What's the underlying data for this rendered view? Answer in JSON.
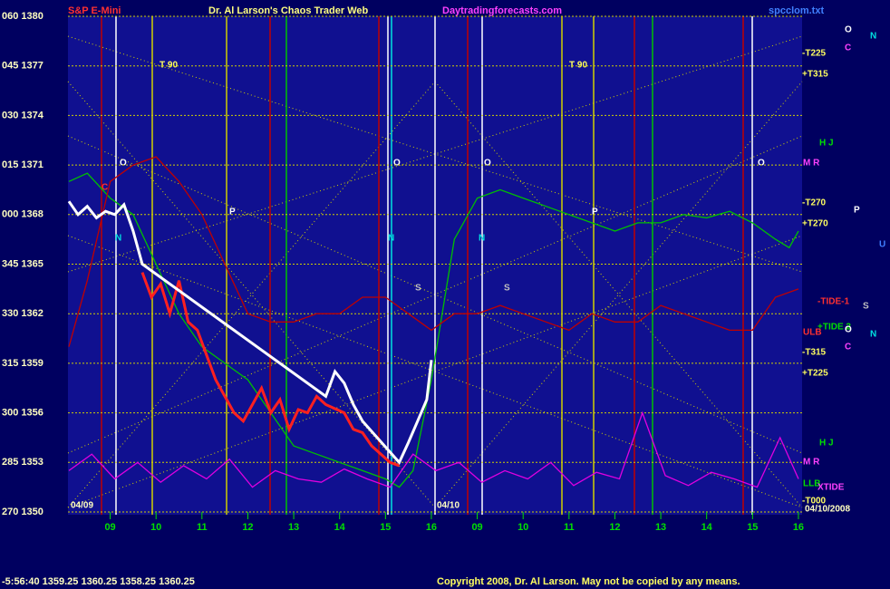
{
  "chart_data": {
    "type": "line",
    "title": "Dr. Al Larson's Chaos Trader Web",
    "instrument": "S&P E-Mini",
    "site": "Daytradingforecasts.com",
    "file": "spcclom.txt",
    "status": "-5:56:40  1359.25 1360.25 1358.25 1360.25",
    "copyright": "Copyright 2008, Dr. Al Larson. May not be copied by any means.",
    "xlim": [
      8.08,
      24.08
    ],
    "xticks": [
      {
        "value": 9,
        "label": "09"
      },
      10,
      11,
      12,
      13,
      14,
      15,
      16,
      {
        "value": 17,
        "label": "09"
      },
      {
        "value": 18,
        "label": "10"
      },
      {
        "value": 19,
        "label": "11"
      },
      {
        "value": 20,
        "label": "12"
      },
      {
        "value": 21,
        "label": "13"
      },
      {
        "value": 22,
        "label": "14"
      },
      {
        "value": 23,
        "label": "15"
      },
      {
        "value": 24,
        "label": "16"
      }
    ],
    "ylim": [
      1350,
      1380
    ],
    "yticks": [
      {
        "value": 1380,
        "label": "060 1380"
      },
      {
        "value": 1377,
        "label": "045 1377"
      },
      {
        "value": 1374,
        "label": "030 1374"
      },
      {
        "value": 1371,
        "label": "015 1371"
      },
      {
        "value": 1368,
        "label": "000 1368"
      },
      {
        "value": 1365,
        "label": "345 1365"
      },
      {
        "value": 1362,
        "label": "330 1362"
      },
      {
        "value": 1359,
        "label": "315 1359"
      },
      {
        "value": 1356,
        "label": "300 1356"
      },
      {
        "value": 1353,
        "label": "285 1353"
      },
      {
        "value": 1350,
        "label": "270 1350"
      }
    ],
    "grid": true,
    "annotations": [
      "T 90",
      "T 90",
      "O",
      "O",
      "O",
      "O",
      "C",
      "N",
      "N",
      "N",
      "P",
      "P",
      "S",
      "S",
      "04/09",
      "04/10",
      "04/10/2008",
      "-T225",
      "+T315",
      "H J",
      "M R",
      "-T270",
      "+T270",
      "-TIDE-1",
      "+TIDE 2",
      "ULB",
      "-T315",
      "+T225",
      "H J",
      "M R",
      "LLB",
      "XTIDE",
      "-T000",
      "O",
      "C",
      "N",
      "P",
      "U",
      "S",
      "O",
      "N",
      "C"
    ],
    "series": [
      {
        "color": "#00c000",
        "x": [
          8.1,
          8.5,
          9,
          9.5,
          10,
          10.5,
          11,
          11.5,
          12,
          12.5,
          13,
          13.5,
          14,
          14.5,
          15,
          15.3,
          15.6,
          16,
          16.5,
          17,
          17.5,
          18,
          18.5,
          19,
          19.5,
          20,
          20.5,
          21,
          21.5,
          22,
          22.5,
          23,
          23.5,
          23.8,
          24
        ],
        "values": [
          1370,
          1370.5,
          1369,
          1368,
          1365,
          1362,
          1360,
          1359,
          1358,
          1356,
          1354,
          1353.5,
          1353,
          1352.5,
          1352,
          1351.5,
          1352.5,
          1358,
          1366.5,
          1369,
          1369.5,
          1369,
          1368.5,
          1368,
          1367.5,
          1367,
          1367.5,
          1367.5,
          1368,
          1367.8,
          1368.2,
          1367.5,
          1366.5,
          1366,
          1367
        ]
      },
      {
        "color": "#c00000",
        "x": [
          8.1,
          8.5,
          9,
          9.5,
          10,
          10.5,
          11,
          11.5,
          12,
          12.5,
          13,
          13.5,
          14,
          14.5,
          15,
          15.5,
          16,
          16.5,
          17,
          17.5,
          18,
          18.5,
          19,
          19.5,
          20,
          20.5,
          21,
          21.5,
          22,
          22.5,
          23,
          23.5,
          24
        ],
        "values": [
          1360,
          1364,
          1370,
          1371,
          1371.5,
          1370,
          1368,
          1365,
          1362,
          1361.5,
          1361.5,
          1362,
          1362,
          1363,
          1363,
          1362,
          1361,
          1362,
          1362,
          1362.5,
          1362,
          1361.5,
          1361,
          1362,
          1361.5,
          1361.5,
          1362.5,
          1362,
          1361.5,
          1361,
          1361,
          1363,
          1363.5
        ]
      },
      {
        "color": "#e000e0",
        "x": [
          8.1,
          8.6,
          9.1,
          9.6,
          10.1,
          10.6,
          11.1,
          11.6,
          12.1,
          12.6,
          13.1,
          13.6,
          14.1,
          14.6,
          15.1,
          15.6,
          16.1,
          16.6,
          17.1,
          17.6,
          18.1,
          18.6,
          19.1,
          19.6,
          20.1,
          20.6,
          21.1,
          21.6,
          22.1,
          22.6,
          23.1,
          23.6,
          24.0
        ],
        "values": [
          1352.5,
          1353.5,
          1352,
          1353,
          1351.8,
          1352.8,
          1352,
          1353.2,
          1351.5,
          1352.5,
          1352,
          1351.8,
          1352.6,
          1352,
          1351.5,
          1353.5,
          1352.5,
          1353,
          1351.8,
          1352.5,
          1352,
          1353,
          1351.6,
          1352.4,
          1352,
          1356,
          1352.2,
          1351.6,
          1352.4,
          1352,
          1351.5,
          1354.5,
          1352
        ]
      },
      {
        "color": "#ff2020",
        "x": [
          9.7,
          9.9,
          10.1,
          10.3,
          10.5,
          10.7,
          10.9,
          11.1,
          11.3,
          11.5,
          11.7,
          11.9,
          12.1,
          12.3,
          12.5,
          12.7,
          12.9,
          13.1,
          13.3,
          13.5,
          13.7,
          14.1,
          14.3,
          14.5,
          14.7,
          14.9,
          15.1,
          15.3
        ],
        "values": [
          1364.5,
          1363,
          1363.8,
          1362,
          1364,
          1361.5,
          1361,
          1359.5,
          1358,
          1357,
          1356,
          1355.5,
          1356.5,
          1357.5,
          1356,
          1356.8,
          1355,
          1356.2,
          1356,
          1357,
          1356.5,
          1356,
          1355,
          1354.8,
          1354,
          1353.5,
          1353,
          1352.8
        ]
      },
      {
        "color": "#ffffff",
        "x": [
          8.1,
          8.3,
          8.5,
          8.7,
          8.9,
          9.1,
          9.3,
          9.5,
          9.7,
          13.7,
          13.9,
          14.1,
          14.3,
          14.5,
          15.3,
          15.5,
          15.7,
          15.9,
          16.0
        ],
        "values": [
          1368.8,
          1368,
          1368.5,
          1367.8,
          1368.2,
          1368,
          1368.6,
          1367,
          1365,
          1357,
          1358.5,
          1357.8,
          1356.5,
          1355.5,
          1353,
          1354.2,
          1355.5,
          1356.8,
          1359.2
        ]
      }
    ]
  }
}
